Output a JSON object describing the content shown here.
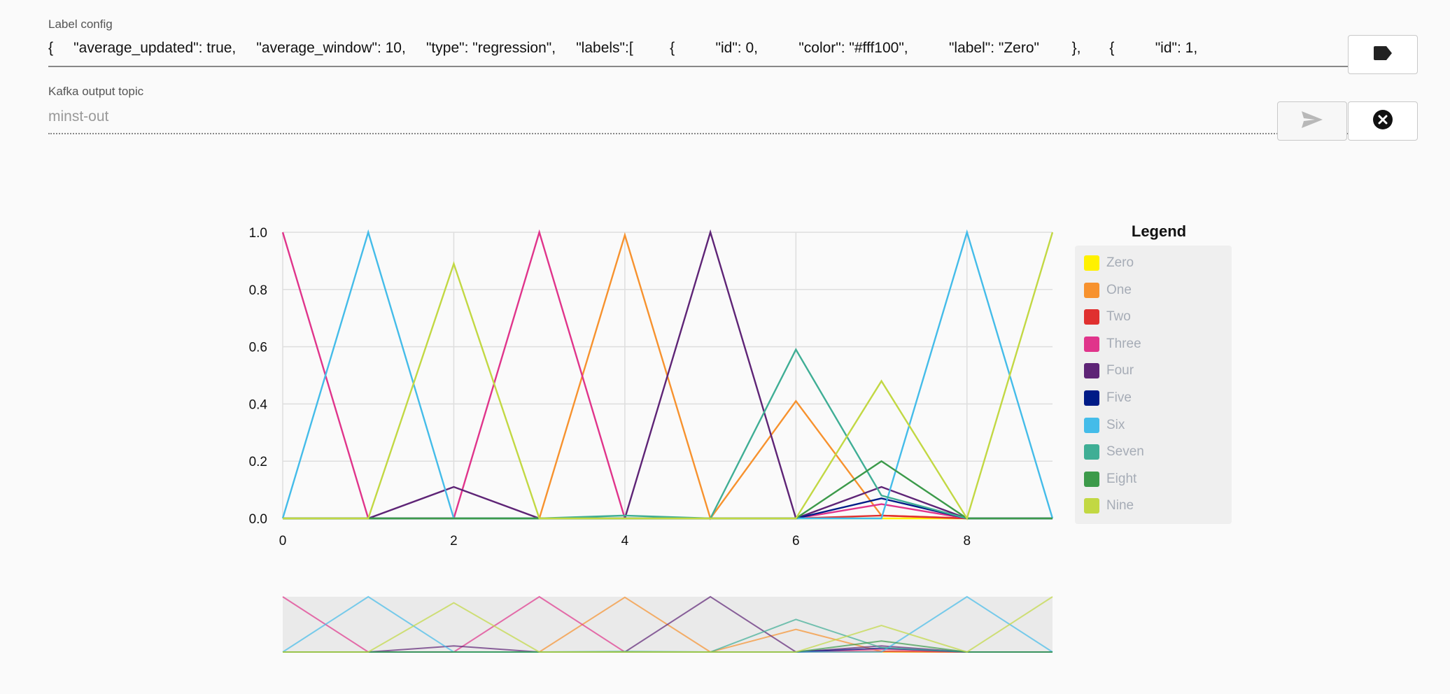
{
  "config": {
    "label": "Label config",
    "value": "{     \"average_updated\": true,     \"average_window\": 10,     \"type\": \"regression\",     \"labels\":[         {          \"id\": 0,          \"color\": \"#fff100\",          \"label\": \"Zero\"        },       {          \"id\": 1,"
  },
  "topic": {
    "label": "Kafka output topic",
    "placeholder": "minst-out"
  },
  "icons": {
    "label_button": "label-tag-icon",
    "send_button": "send-icon",
    "clear_button": "close-circle-icon"
  },
  "legend": {
    "title": "Legend",
    "items": [
      {
        "label": "Zero",
        "color": "#fff100"
      },
      {
        "label": "One",
        "color": "#f7922e"
      },
      {
        "label": "Two",
        "color": "#e0302f"
      },
      {
        "label": "Three",
        "color": "#e0348b"
      },
      {
        "label": "Four",
        "color": "#5e2476"
      },
      {
        "label": "Five",
        "color": "#001b87"
      },
      {
        "label": "Six",
        "color": "#44bce9"
      },
      {
        "label": "Seven",
        "color": "#3fae95"
      },
      {
        "label": "Eight",
        "color": "#3c9a4a"
      },
      {
        "label": "Nine",
        "color": "#c2d843"
      }
    ]
  },
  "chart_data": {
    "type": "line",
    "x": [
      0,
      1,
      2,
      3,
      4,
      5,
      6,
      7,
      8,
      9
    ],
    "xlim": [
      0,
      9
    ],
    "ylim": [
      0,
      1
    ],
    "xticks": [
      "0",
      "2",
      "4",
      "6",
      "8"
    ],
    "yticks": [
      "0.0",
      "0.2",
      "0.4",
      "0.6",
      "0.8",
      "1.0"
    ],
    "grid": true,
    "legend_position": "right",
    "overview_brush": true,
    "series": [
      {
        "name": "Zero",
        "color": "#fff100",
        "values": [
          0,
          0,
          0,
          0,
          0,
          0,
          0,
          0,
          0,
          0
        ]
      },
      {
        "name": "One",
        "color": "#f7922e",
        "values": [
          0,
          0,
          0,
          0,
          0.99,
          0,
          0.41,
          0.01,
          0,
          0
        ]
      },
      {
        "name": "Two",
        "color": "#e0302f",
        "values": [
          0,
          0,
          0,
          0,
          0,
          0,
          0,
          0.01,
          0,
          0
        ]
      },
      {
        "name": "Three",
        "color": "#e0348b",
        "values": [
          1.0,
          0,
          0,
          1.0,
          0,
          0,
          0,
          0.05,
          0,
          0
        ]
      },
      {
        "name": "Four",
        "color": "#5e2476",
        "values": [
          0,
          0,
          0.11,
          0,
          0,
          1.0,
          0,
          0.11,
          0,
          0
        ]
      },
      {
        "name": "Five",
        "color": "#001b87",
        "values": [
          0,
          0,
          0,
          0,
          0,
          0,
          0,
          0.07,
          0,
          0
        ]
      },
      {
        "name": "Six",
        "color": "#44bce9",
        "values": [
          0,
          1.0,
          0,
          0,
          0,
          0,
          0,
          0,
          1.0,
          0
        ]
      },
      {
        "name": "Seven",
        "color": "#3fae95",
        "values": [
          0,
          0,
          0,
          0,
          0.01,
          0,
          0.59,
          0.08,
          0,
          0
        ]
      },
      {
        "name": "Eight",
        "color": "#3c9a4a",
        "values": [
          0,
          0,
          0,
          0,
          0,
          0,
          0,
          0.2,
          0,
          0
        ]
      },
      {
        "name": "Nine",
        "color": "#c2d843",
        "values": [
          0,
          0,
          0.89,
          0,
          0,
          0,
          0,
          0.48,
          0,
          1.0
        ]
      }
    ]
  }
}
